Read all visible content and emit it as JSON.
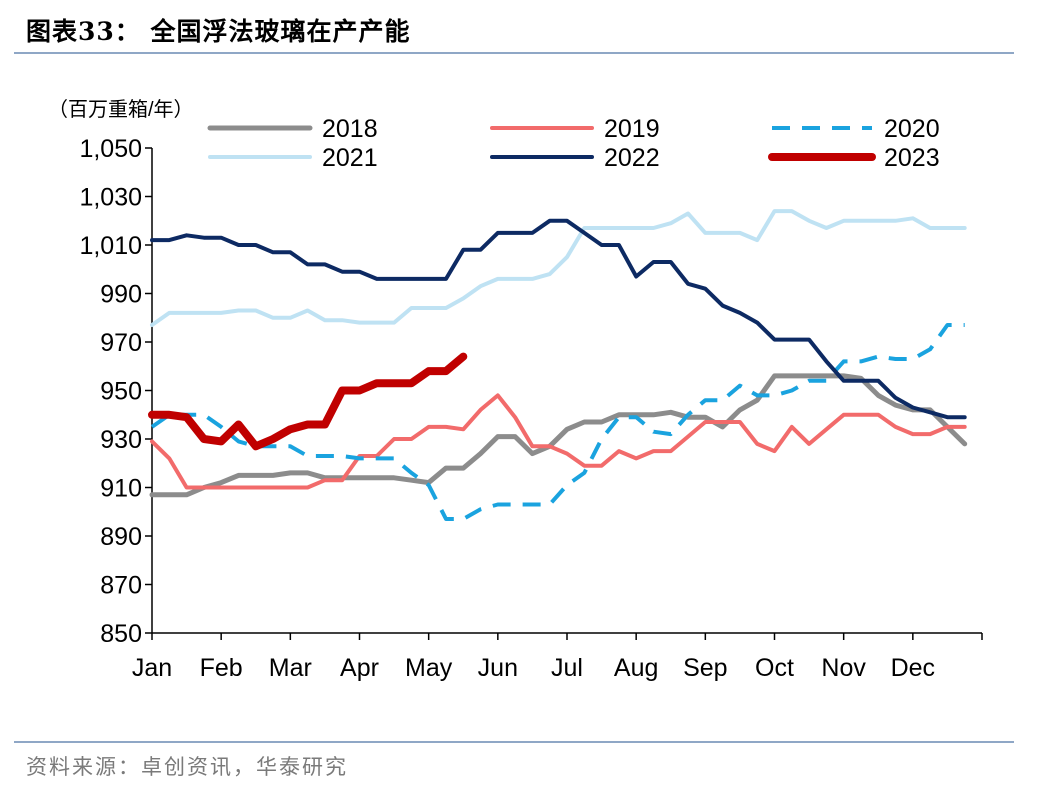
{
  "header": {
    "title": "图表33：  全国浮法玻璃在产产能"
  },
  "footer": {
    "source": "资料来源：卓创资讯，华泰研究"
  },
  "chart_data": {
    "type": "line",
    "ylabel": "（百万重箱/年）",
    "ylim": [
      850,
      1050
    ],
    "yticks": [
      850,
      870,
      890,
      910,
      930,
      950,
      970,
      990,
      1010,
      1030,
      1050
    ],
    "ytick_labels": [
      "850",
      "870",
      "890",
      "910",
      "930",
      "950",
      "970",
      "990",
      "1,010",
      "1,030",
      "1,050"
    ],
    "xlim": [
      0,
      12
    ],
    "categories": [
      "Jan",
      "Feb",
      "Mar",
      "Apr",
      "May",
      "Jun",
      "Jul",
      "Aug",
      "Sep",
      "Oct",
      "Nov",
      "Dec"
    ],
    "legend_position": "top",
    "grid": false,
    "series": [
      {
        "name": "2018",
        "color": "#8c8c8c",
        "dash": "solid",
        "width": 5,
        "x": [
          0,
          0.5,
          0.75,
          1.0,
          1.25,
          1.5,
          1.75,
          2.0,
          2.25,
          2.5,
          2.75,
          3.0,
          3.5,
          3.75,
          4.0,
          4.25,
          4.5,
          4.75,
          5.0,
          5.25,
          5.5,
          5.75,
          6.0,
          6.25,
          6.5,
          6.75,
          7.0,
          7.25,
          7.5,
          7.75,
          8.0,
          8.25,
          8.5,
          8.75,
          9.0,
          9.25,
          9.5,
          9.75,
          10.0,
          10.25,
          10.5,
          10.75,
          11.0,
          11.25,
          11.5,
          11.75
        ],
        "y": [
          907,
          907,
          910,
          912,
          915,
          915,
          915,
          916,
          916,
          914,
          914,
          914,
          914,
          913,
          912,
          918,
          918,
          924,
          931,
          931,
          924,
          927,
          934,
          937,
          937,
          940,
          940,
          940,
          941,
          939,
          939,
          935,
          942,
          946,
          956,
          956,
          956,
          956,
          956,
          955,
          948,
          944,
          942,
          942,
          935,
          928
        ]
      },
      {
        "name": "2019",
        "color": "#f26b6b",
        "dash": "solid",
        "width": 4,
        "x": [
          0,
          0.25,
          0.5,
          0.75,
          1.0,
          1.25,
          1.5,
          1.75,
          2.0,
          2.25,
          2.5,
          2.75,
          3.0,
          3.25,
          3.5,
          3.75,
          4.0,
          4.25,
          4.5,
          4.75,
          5.0,
          5.25,
          5.5,
          5.75,
          6.0,
          6.25,
          6.5,
          6.75,
          7.0,
          7.25,
          7.5,
          7.75,
          8.0,
          8.25,
          8.5,
          8.75,
          9.0,
          9.25,
          9.5,
          9.75,
          10.0,
          10.25,
          10.5,
          10.75,
          11.0,
          11.25,
          11.5,
          11.75
        ],
        "y": [
          929,
          922,
          910,
          910,
          910,
          910,
          910,
          910,
          910,
          910,
          913,
          913,
          923,
          923,
          930,
          930,
          935,
          935,
          934,
          942,
          948,
          939,
          927,
          927,
          924,
          919,
          919,
          925,
          922,
          925,
          925,
          931,
          937,
          937,
          937,
          928,
          925,
          935,
          928,
          934,
          940,
          940,
          940,
          935,
          932,
          932,
          935,
          935
        ]
      },
      {
        "name": "2020",
        "color": "#1aa3df",
        "dash": "dashed",
        "width": 4,
        "x": [
          0,
          0.25,
          0.5,
          0.75,
          1.0,
          1.25,
          1.5,
          1.75,
          2.0,
          2.25,
          2.5,
          2.75,
          3.0,
          3.25,
          3.5,
          3.75,
          4.0,
          4.25,
          4.5,
          4.75,
          5.0,
          5.25,
          5.5,
          5.75,
          6.0,
          6.25,
          6.5,
          6.75,
          7.0,
          7.25,
          7.5,
          7.75,
          8.0,
          8.25,
          8.5,
          8.75,
          9.0,
          9.25,
          9.5,
          9.75,
          10.0,
          10.25,
          10.5,
          10.75,
          11.0,
          11.25,
          11.5,
          11.75
        ],
        "y": [
          935,
          940,
          940,
          940,
          935,
          929,
          927,
          927,
          927,
          923,
          923,
          923,
          922,
          922,
          922,
          916,
          911,
          897,
          897,
          901,
          903,
          903,
          903,
          903,
          911,
          916,
          930,
          939,
          939,
          933,
          932,
          940,
          946,
          946,
          952,
          948,
          948,
          950,
          954,
          954,
          962,
          962,
          964,
          963,
          963,
          967,
          977,
          977
        ]
      },
      {
        "name": "2021",
        "color": "#bfe2f3",
        "dash": "solid",
        "width": 4,
        "x": [
          0,
          0.25,
          0.5,
          0.75,
          1.0,
          1.25,
          1.5,
          1.75,
          2.0,
          2.25,
          2.5,
          2.75,
          3.0,
          3.25,
          3.5,
          3.75,
          4.0,
          4.25,
          4.5,
          4.75,
          5.0,
          5.25,
          5.5,
          5.75,
          6.0,
          6.25,
          6.5,
          6.75,
          7.0,
          7.25,
          7.5,
          7.75,
          8.0,
          8.25,
          8.5,
          8.75,
          9.0,
          9.25,
          9.5,
          9.75,
          10.0,
          10.25,
          10.5,
          10.75,
          11.0,
          11.25,
          11.5,
          11.75
        ],
        "y": [
          977,
          982,
          982,
          982,
          982,
          983,
          983,
          980,
          980,
          983,
          979,
          979,
          978,
          978,
          978,
          984,
          984,
          984,
          988,
          993,
          996,
          996,
          996,
          998,
          1005,
          1017,
          1017,
          1017,
          1017,
          1017,
          1019,
          1023,
          1015,
          1015,
          1015,
          1012,
          1024,
          1024,
          1020,
          1017,
          1020,
          1020,
          1020,
          1020,
          1021,
          1017,
          1017,
          1017
        ]
      },
      {
        "name": "2022",
        "color": "#0d2a63",
        "dash": "solid",
        "width": 4,
        "x": [
          0,
          0.25,
          0.5,
          0.75,
          1.0,
          1.25,
          1.5,
          1.75,
          2.0,
          2.25,
          2.5,
          2.75,
          3.0,
          3.25,
          3.5,
          3.75,
          4.0,
          4.25,
          4.5,
          4.75,
          5.0,
          5.25,
          5.5,
          5.75,
          6.0,
          6.25,
          6.5,
          6.75,
          7.0,
          7.25,
          7.5,
          7.75,
          8.0,
          8.25,
          8.5,
          8.75,
          9.0,
          9.25,
          9.5,
          9.75,
          10.0,
          10.25,
          10.5,
          10.75,
          11.0,
          11.25,
          11.5,
          11.75
        ],
        "y": [
          1012,
          1012,
          1014,
          1013,
          1013,
          1010,
          1010,
          1007,
          1007,
          1002,
          1002,
          999,
          999,
          996,
          996,
          996,
          996,
          996,
          1008,
          1008,
          1015,
          1015,
          1015,
          1020,
          1020,
          1015,
          1010,
          1010,
          997,
          1003,
          1003,
          994,
          992,
          985,
          982,
          978,
          971,
          971,
          971,
          962,
          954,
          954,
          954,
          947,
          943,
          941,
          939,
          939
        ]
      },
      {
        "name": "2023",
        "color": "#c00000",
        "dash": "solid",
        "width": 8,
        "x": [
          0,
          0.25,
          0.5,
          0.75,
          1.0,
          1.25,
          1.5,
          1.75,
          2.0,
          2.25,
          2.5,
          2.75,
          3.0,
          3.25,
          3.5,
          3.75,
          4.0,
          4.25,
          4.5
        ],
        "y": [
          940,
          940,
          939,
          930,
          929,
          936,
          927,
          930,
          934,
          936,
          936,
          950,
          950,
          953,
          953,
          953,
          958,
          958,
          964
        ]
      }
    ]
  }
}
